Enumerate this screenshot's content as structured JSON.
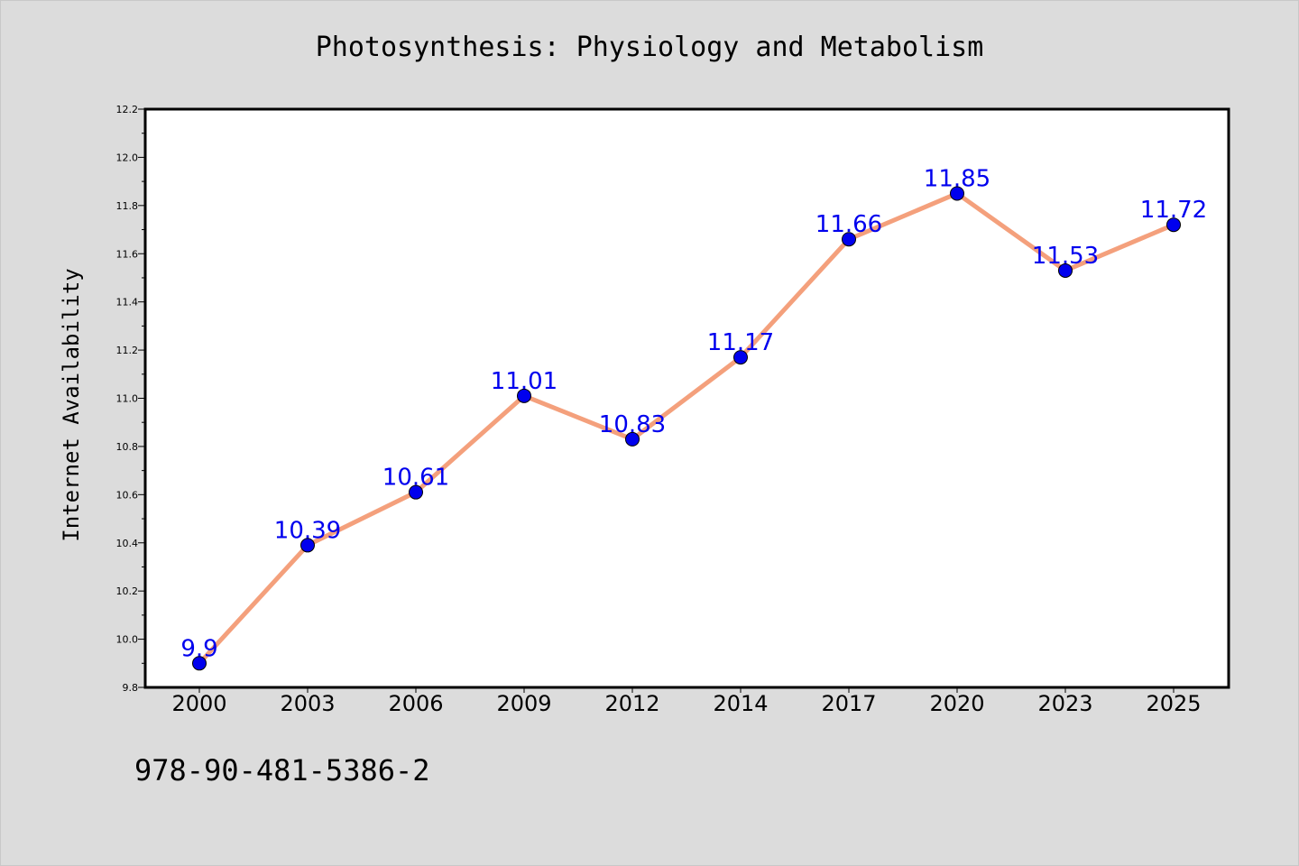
{
  "title": "Photosynthesis: Physiology and Metabolism",
  "isbn": "978-90-481-5386-2",
  "chart_data": {
    "type": "line",
    "title": "Photosynthesis: Physiology and Metabolism",
    "xlabel": "",
    "ylabel": "Internet Availability",
    "categories": [
      "2000",
      "2003",
      "2006",
      "2009",
      "2012",
      "2014",
      "2017",
      "2020",
      "2023",
      "2025"
    ],
    "series": [
      {
        "values": [
          9.9,
          10.39,
          10.61,
          11.01,
          10.83,
          11.17,
          11.66,
          11.85,
          11.53,
          11.72
        ],
        "labels": [
          "9.9",
          "10.39",
          "10.61",
          "11.01",
          "10.83",
          "11.17",
          "11.66",
          "11.85",
          "11.53",
          "11.72"
        ],
        "line_color": "#f4a07c",
        "marker_color": "#0000ee"
      }
    ],
    "ylim": [
      9.8,
      12.2
    ],
    "yticks": [
      "9.8",
      "10.0",
      "10.2",
      "10.4",
      "10.6",
      "10.8",
      "11.0",
      "11.2",
      "11.4",
      "11.6",
      "11.8",
      "12.0",
      "12.2"
    ],
    "grid": false,
    "legend": "none"
  }
}
